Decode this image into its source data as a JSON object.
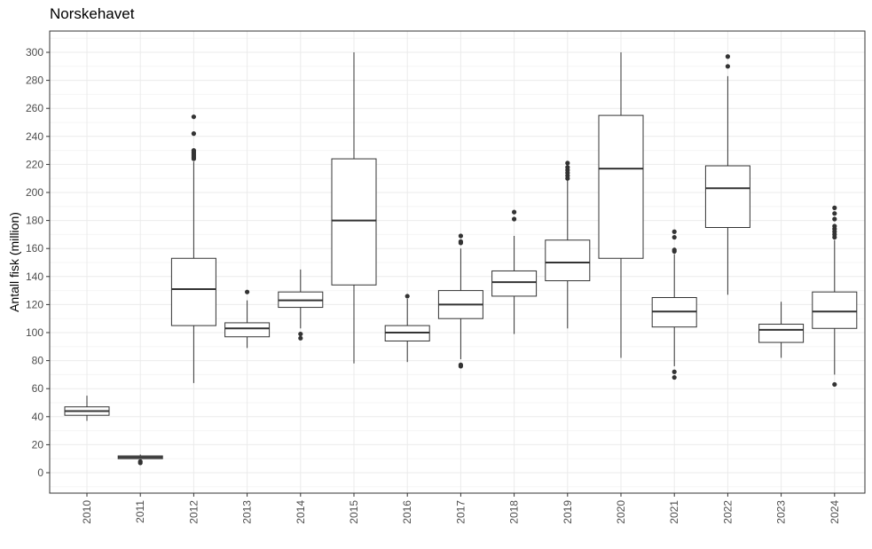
{
  "chart_data": {
    "type": "box",
    "title": "Norskehavet",
    "xlabel": "",
    "ylabel": "Antall fisk (million)",
    "ylim": [
      -15,
      316
    ],
    "yticks": [
      0,
      20,
      40,
      60,
      80,
      100,
      120,
      140,
      160,
      180,
      200,
      220,
      240,
      260,
      280,
      300
    ],
    "grid": true,
    "categories": [
      "2010",
      "2011",
      "2012",
      "2013",
      "2014",
      "2015",
      "2016",
      "2017",
      "2018",
      "2019",
      "2020",
      "2021",
      "2022",
      "2023",
      "2024"
    ],
    "boxes": [
      {
        "category": "2010",
        "whisker_low": 37,
        "q1": 41,
        "median": 44,
        "q3": 47,
        "whisker_high": 55,
        "outliers": []
      },
      {
        "category": "2011",
        "whisker_low": 10,
        "q1": 10,
        "median": 11,
        "q3": 12,
        "whisker_high": 13,
        "outliers": [
          7,
          8
        ]
      },
      {
        "category": "2012",
        "whisker_low": 64,
        "q1": 105,
        "median": 131,
        "q3": 153,
        "whisker_high": 222,
        "outliers": [
          224,
          225,
          226,
          227,
          228,
          229,
          230,
          242,
          254
        ]
      },
      {
        "category": "2013",
        "whisker_low": 89,
        "q1": 97,
        "median": 103,
        "q3": 107,
        "whisker_high": 123,
        "outliers": [
          129
        ]
      },
      {
        "category": "2014",
        "whisker_low": 103,
        "q1": 118,
        "median": 123,
        "q3": 129,
        "whisker_high": 145,
        "outliers": [
          96,
          99
        ]
      },
      {
        "category": "2015",
        "whisker_low": 78,
        "q1": 134,
        "median": 180,
        "q3": 224,
        "whisker_high": 300,
        "outliers": []
      },
      {
        "category": "2016",
        "whisker_low": 79,
        "q1": 94,
        "median": 100,
        "q3": 105,
        "whisker_high": 124,
        "outliers": [
          126
        ]
      },
      {
        "category": "2017",
        "whisker_low": 81,
        "q1": 110,
        "median": 120,
        "q3": 130,
        "whisker_high": 160,
        "outliers": [
          76,
          77,
          164,
          165,
          169
        ]
      },
      {
        "category": "2018",
        "whisker_low": 99,
        "q1": 126,
        "median": 136,
        "q3": 144,
        "whisker_high": 169,
        "outliers": [
          181,
          186
        ]
      },
      {
        "category": "2019",
        "whisker_low": 103,
        "q1": 137,
        "median": 150,
        "q3": 166,
        "whisker_high": 209,
        "outliers": [
          210,
          212,
          214,
          216,
          218,
          221
        ]
      },
      {
        "category": "2020",
        "whisker_low": 82,
        "q1": 153,
        "median": 217,
        "q3": 255,
        "whisker_high": 300,
        "outliers": []
      },
      {
        "category": "2021",
        "whisker_low": 76,
        "q1": 104,
        "median": 115,
        "q3": 125,
        "whisker_high": 156,
        "outliers": [
          68,
          72,
          158,
          159,
          168,
          172
        ]
      },
      {
        "category": "2022",
        "whisker_low": 127,
        "q1": 175,
        "median": 203,
        "q3": 219,
        "whisker_high": 283,
        "outliers": [
          290,
          297
        ]
      },
      {
        "category": "2023",
        "whisker_low": 82,
        "q1": 93,
        "median": 102,
        "q3": 106,
        "whisker_high": 122,
        "outliers": []
      },
      {
        "category": "2024",
        "whisker_low": 70,
        "q1": 103,
        "median": 115,
        "q3": 129,
        "whisker_high": 166,
        "outliers": [
          63,
          168,
          170,
          172,
          174,
          176,
          181,
          185,
          189
        ]
      }
    ],
    "colors": {
      "box_fill": "#ffffff",
      "box_stroke": "#333333",
      "outlier": "#333333",
      "grid_major": "#ebebeb",
      "grid_minor": "#f5f5f5",
      "panel_border": "#333333",
      "tick_text": "#4d4d4d"
    }
  }
}
